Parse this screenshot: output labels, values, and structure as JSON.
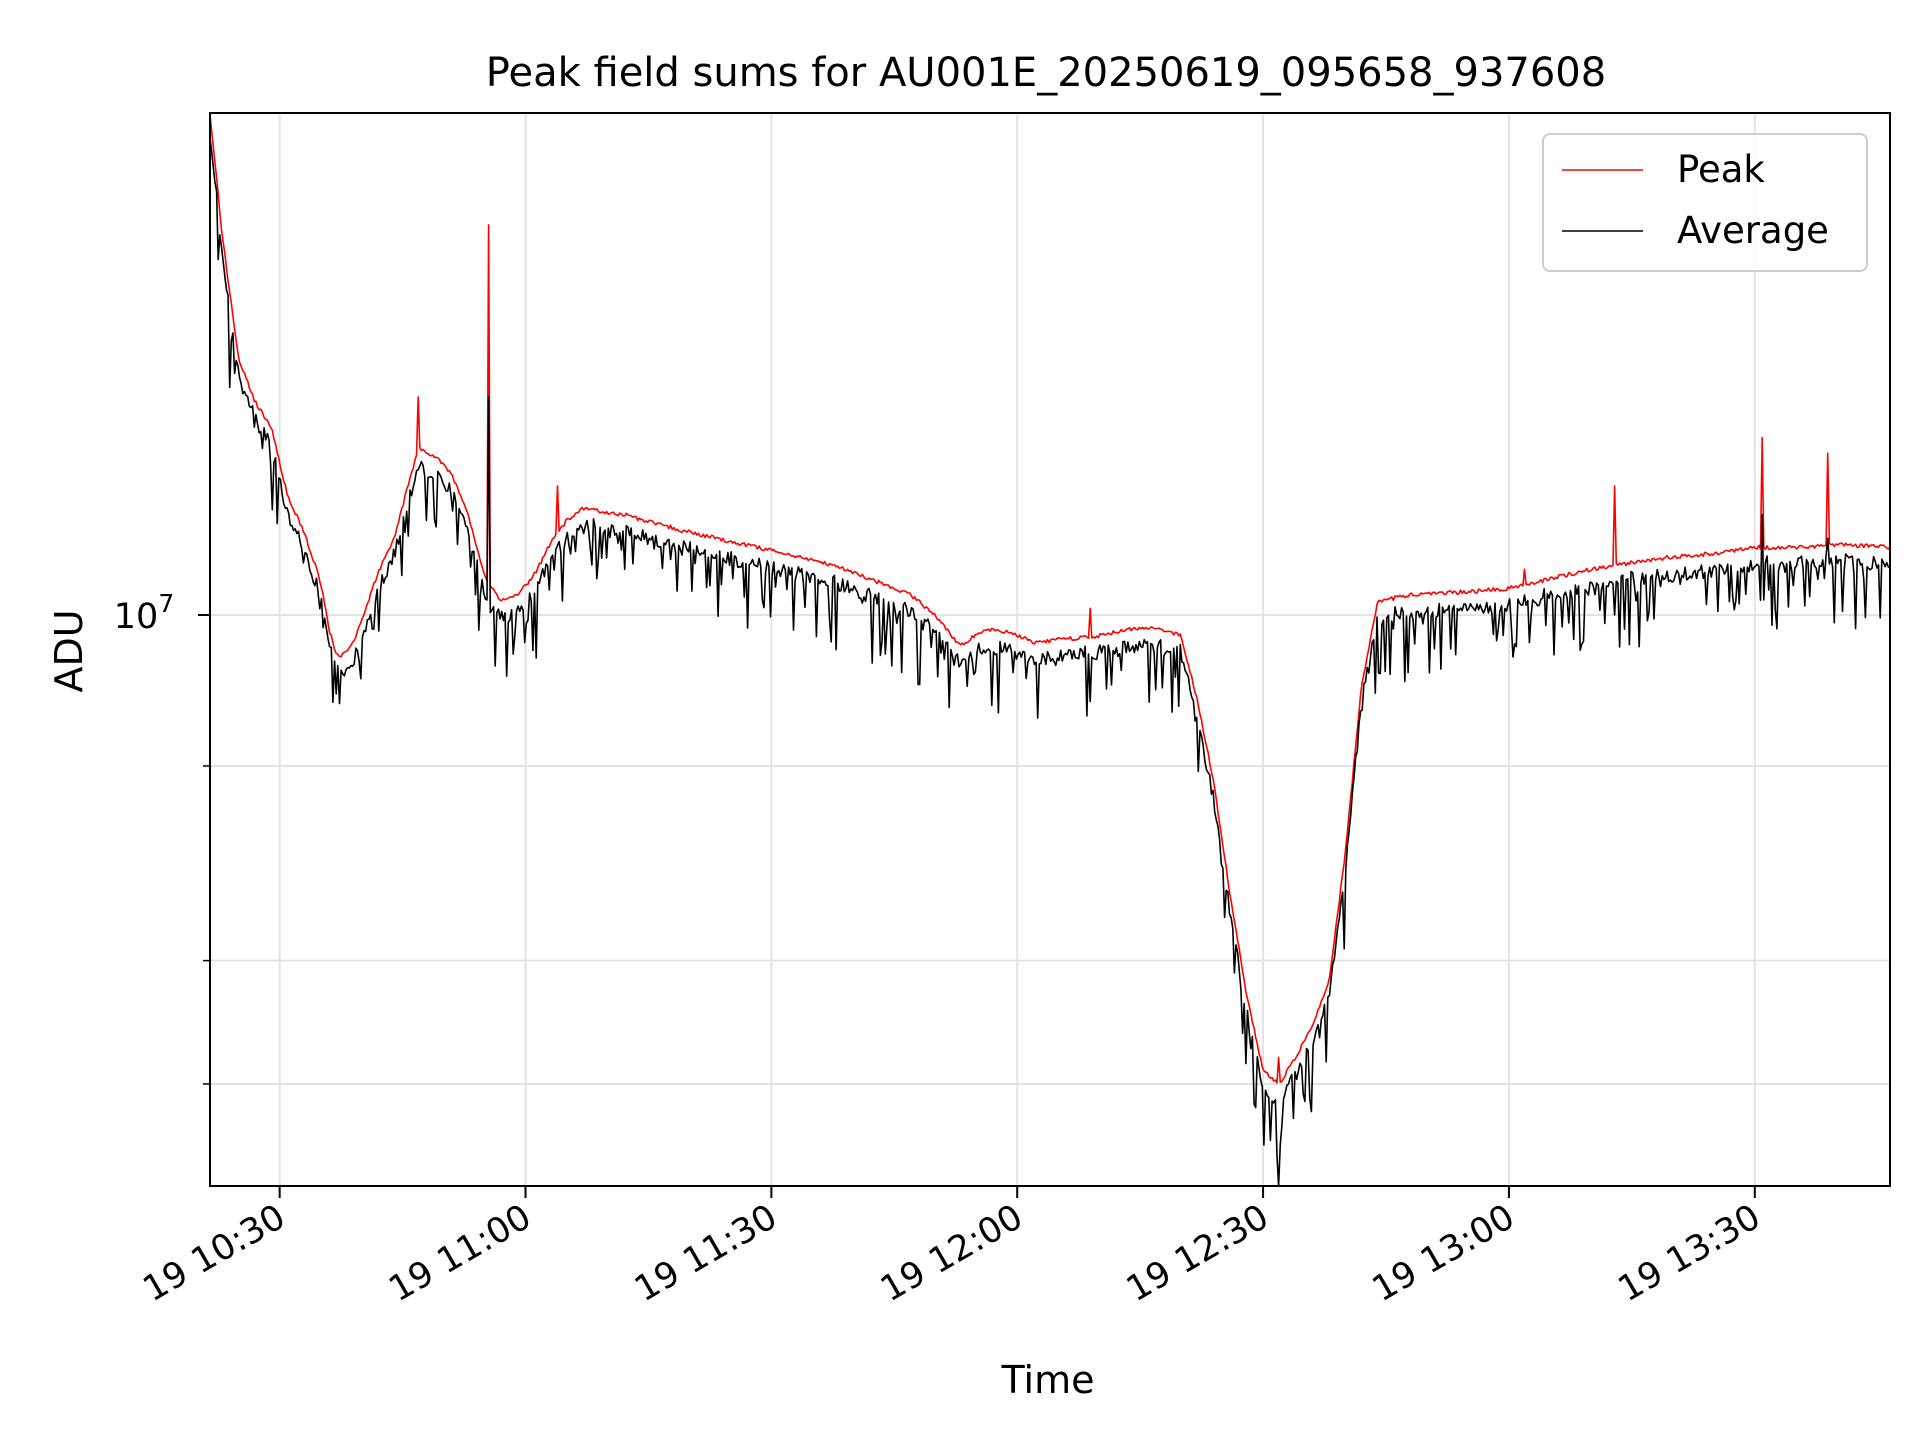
{
  "chart_data": {
    "type": "line",
    "title": "Peak field sums for AU001E_20250619_095658_937608",
    "xlabel": "Time",
    "ylabel": "ADU",
    "x_axis": {
      "unit": "minutes",
      "range": [
        "19 10:21:30",
        "19 13:46:30"
      ],
      "ticks": [
        {
          "value": "19 10:30",
          "label": "19 10:30"
        },
        {
          "value": "19 11:00",
          "label": "19 11:00"
        },
        {
          "value": "19 11:30",
          "label": "19 11:30"
        },
        {
          "value": "19 12:00",
          "label": "19 12:00"
        },
        {
          "value": "19 12:30",
          "label": "19 12:30"
        },
        {
          "value": "19 13:00",
          "label": "19 13:00"
        },
        {
          "value": "19 13:30",
          "label": "19 13:30"
        }
      ],
      "tick_labels_rotated": true
    },
    "y_axis": {
      "scale": "log",
      "range": [
        4300000,
        21000000
      ],
      "major_ticks": [
        {
          "value": 10000000,
          "base": "10",
          "exp": "7"
        }
      ],
      "minor_ticks": [
        5000000,
        6000000,
        8000000
      ]
    },
    "grid": true,
    "legend": {
      "position": "top-right",
      "entries": [
        "Peak",
        "Average"
      ]
    },
    "series": [
      {
        "name": "Peak",
        "color": "#ff0000",
        "points": [
          [
            "19 10:21:30",
            21000000
          ],
          [
            "19 10:23",
            17500000
          ],
          [
            "19 10:25",
            14600000
          ],
          [
            "19 10:27",
            13700000
          ],
          [
            "19 10:29",
            13200000
          ],
          [
            "19 10:31",
            11900000
          ],
          [
            "19 10:33",
            11300000
          ],
          [
            "19 10:35",
            10500000
          ],
          [
            "19 10:36",
            9800000
          ],
          [
            "19 10:37",
            9400000
          ],
          [
            "19 10:38",
            9450000
          ],
          [
            "19 10:39",
            9600000
          ],
          [
            "19 10:40",
            9900000
          ],
          [
            "19 10:42",
            10650000
          ],
          [
            "19 10:44",
            11200000
          ],
          [
            "19 10:46",
            12300000
          ],
          [
            "19 10:47",
            12800000
          ],
          [
            "19 10:49",
            12650000
          ],
          [
            "19 10:51",
            12300000
          ],
          [
            "19 10:53",
            11600000
          ],
          [
            "19 10:55",
            10600000
          ],
          [
            "19 10:57",
            10200000
          ],
          [
            "19 10:59",
            10300000
          ],
          [
            "19 11:01",
            10600000
          ],
          [
            "19 11:03",
            11100000
          ],
          [
            "19 11:05",
            11500000
          ],
          [
            "19 11:07",
            11700000
          ],
          [
            "19 11:12",
            11600000
          ],
          [
            "19 11:20",
            11300000
          ],
          [
            "19 11:30",
            11000000
          ],
          [
            "19 11:38",
            10750000
          ],
          [
            "19 11:43",
            10500000
          ],
          [
            "19 11:47",
            10300000
          ],
          [
            "19 11:50",
            10000000
          ],
          [
            "19 11:53",
            9550000
          ],
          [
            "19 11:56",
            9800000
          ],
          [
            "19 11:59",
            9750000
          ],
          [
            "19 12:02",
            9600000
          ],
          [
            "19 12:06",
            9650000
          ],
          [
            "19 12:10",
            9700000
          ],
          [
            "19 12:14",
            9800000
          ],
          [
            "19 12:17",
            9800000
          ],
          [
            "19 12:20",
            9700000
          ],
          [
            "19 12:22",
            8800000
          ],
          [
            "19 12:24",
            7800000
          ],
          [
            "19 12:26",
            6600000
          ],
          [
            "19 12:28",
            5700000
          ],
          [
            "19 12:30",
            5100000
          ],
          [
            "19 12:32",
            5000000
          ],
          [
            "19 12:34",
            5200000
          ],
          [
            "19 12:36",
            5450000
          ],
          [
            "19 12:38",
            5800000
          ],
          [
            "19 12:40",
            7000000
          ],
          [
            "19 12:42",
            9000000
          ],
          [
            "19 12:44",
            10200000
          ],
          [
            "19 12:48",
            10300000
          ],
          [
            "19 12:55",
            10350000
          ],
          [
            "19 13:00",
            10400000
          ],
          [
            "19 13:05",
            10550000
          ],
          [
            "19 13:10",
            10700000
          ],
          [
            "19 13:15",
            10800000
          ],
          [
            "19 13:20",
            10900000
          ],
          [
            "19 13:25",
            10950000
          ],
          [
            "19 13:30",
            11050000
          ],
          [
            "19 13:35",
            11050000
          ],
          [
            "19 13:40",
            11100000
          ],
          [
            "19 13:46:30",
            11050000
          ]
        ],
        "spikes": [
          [
            "19 10:47",
            13800000
          ],
          [
            "19 10:55:30",
            17800000
          ],
          [
            "19 11:04",
            12100000
          ],
          [
            "19 12:09",
            10100000
          ],
          [
            "19 12:32",
            5200000
          ],
          [
            "19 13:02",
            10700000
          ],
          [
            "19 13:13",
            12100000
          ],
          [
            "19 13:31",
            13000000
          ],
          [
            "19 13:39",
            12700000
          ]
        ]
      },
      {
        "name": "Average",
        "color": "#000000",
        "follows": "Peak",
        "downward_dips_to": [
          [
            "19 10:24",
            14000000
          ],
          [
            "19 10:29",
            12500000
          ],
          [
            "19 10:33",
            10800000
          ],
          [
            "19 10:37",
            8900000
          ],
          [
            "19 10:40",
            9100000
          ],
          [
            "19 10:48",
            11500000
          ],
          [
            "19 11:00",
            9600000
          ],
          [
            "19 11:38",
            9500000
          ],
          [
            "19 11:54",
            9000000
          ],
          [
            "19 11:57",
            8750000
          ],
          [
            "19 12:09",
            8800000
          ],
          [
            "19 12:31",
            4600000
          ],
          [
            "19 12:32",
            4300000
          ],
          [
            "19 12:36",
            4800000
          ],
          [
            "19 12:45",
            9200000
          ],
          [
            "19 13:13",
            10000000
          ],
          [
            "19 13:27",
            10200000
          ]
        ],
        "spikes": [
          [
            "19 10:55:30",
            13800000
          ],
          [
            "19 13:31",
            11600000
          ],
          [
            "19 13:39",
            11200000
          ]
        ]
      }
    ]
  }
}
